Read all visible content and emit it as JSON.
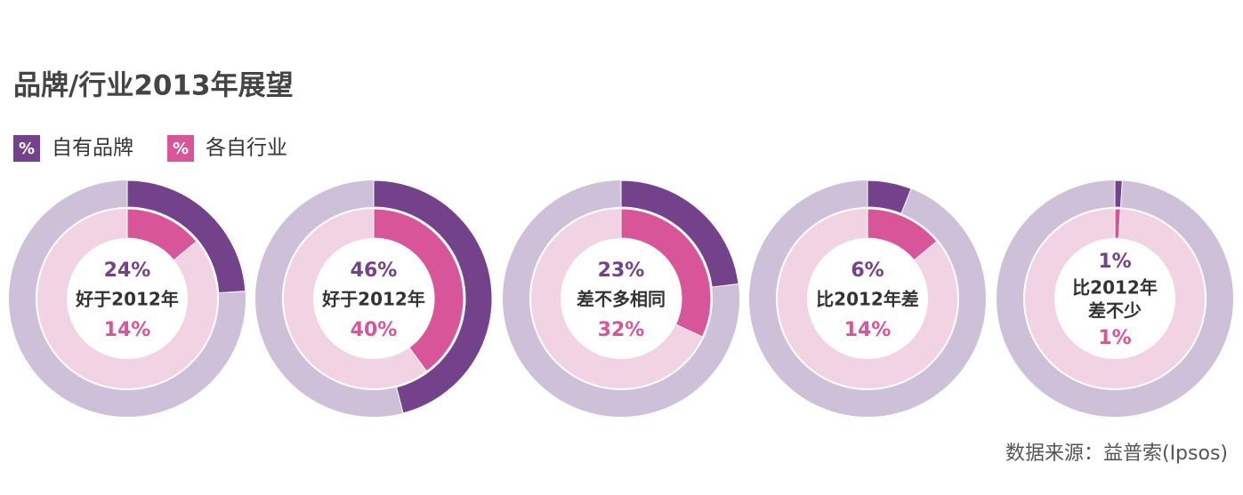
{
  "chart_data": {
    "type": "donut",
    "title": "品牌/行业2013年展望",
    "legend_symbol": "%",
    "center_labels": [
      [
        "好于2012年"
      ],
      [
        "好于2012年"
      ],
      [
        "差不多相同"
      ],
      [
        "比2012年差"
      ],
      [
        "比2012年",
        "差不少"
      ]
    ],
    "total": 100,
    "series": [
      {
        "name": "自有品牌",
        "color": "#74428a",
        "track_color": "#cfc0d9",
        "values": [
          24,
          46,
          23,
          6,
          1
        ],
        "value_labels": [
          "24%",
          "46%",
          "23%",
          "6%",
          "1%"
        ]
      },
      {
        "name": "各自行业",
        "color": "#d9559a",
        "track_color": "#f2d3e3",
        "values": [
          14,
          40,
          32,
          14,
          1
        ],
        "value_labels": [
          "14%",
          "40%",
          "32%",
          "14%",
          "1%"
        ]
      }
    ],
    "source": "数据来源：益普索(Ipsos)"
  }
}
